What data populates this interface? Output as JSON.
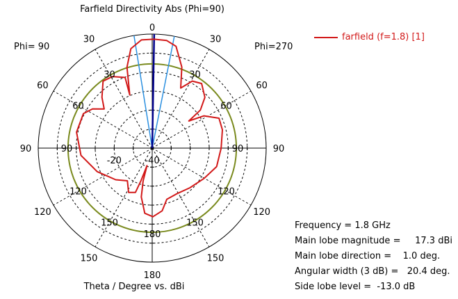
{
  "chart_data": {
    "type": "polar-line",
    "title": "Farfield Directivity Abs (Phi=90)",
    "xlabel": "Theta / Degree vs. dBi",
    "left_label": "Phi= 90",
    "right_label": "Phi=270",
    "radial_range": [
      -40,
      20
    ],
    "radial_ticks": [
      -40,
      -30,
      -20,
      -10,
      0,
      10,
      20
    ],
    "radial_tick_labels": [
      "-40",
      "-20"
    ],
    "angle_labels": [
      "0",
      "30",
      "60",
      "90",
      "120",
      "150",
      "180"
    ],
    "grid": true,
    "legend": {
      "position": "top-right",
      "entries": [
        "farfield (f=1.8) [1]"
      ]
    },
    "series": [
      {
        "name": "farfield (f=1.8) [1]",
        "color": "#d21919",
        "theta": [
          -173.5,
          -167.4,
          -164.5,
          -163.5,
          -161,
          -159.3,
          -151.9,
          -142.8,
          -130.9,
          -113.1,
          -95.8,
          -78.1,
          -63.4,
          -56.7,
          -50.8,
          -44.7,
          -36.3,
          -29.1,
          -21.0,
          -22.9,
          -17.3,
          -12.1,
          -5.7,
          1,
          7.7,
          13.2,
          20.1,
          25.4,
          30.9,
          37.4,
          46.1,
          51.7,
          53.5,
          58.1,
          65.9,
          75.4,
          90,
          106,
          120.4,
          136.4,
          151.1,
          164.1,
          171,
          179.4
        ],
        "dbi": [
          -5.5,
          -13.7,
          -22,
          -30.4,
          -22,
          -15.1,
          -13.6,
          -18.4,
          -14.6,
          -8.5,
          -2.3,
          0.7,
          0.5,
          -2.4,
          -7.4,
          -2.4,
          3.7,
          3.1,
          -0.2,
          -9.6,
          4.6,
          13.5,
          17.2,
          17.3,
          17.1,
          15.0,
          5.4,
          -5.0,
          1.1,
          2.8,
          -1.5,
          -7.7,
          -16,
          -7.9,
          -1.5,
          -1.8,
          -3.7,
          -4.7,
          -8.4,
          -11.2,
          -12.7,
          -12,
          -6.6,
          -3.9
        ]
      }
    ],
    "main_lobe_direction": 1.0,
    "beamwidth_3db": 20.4,
    "side_lobe_reference_dbi": 4.3,
    "colors": {
      "main_lobe": "#00008b",
      "beamwidth": "#2a8fe0",
      "side_lobe_circle": "#7a8a1e",
      "grid": "#000000"
    }
  },
  "info": {
    "frequency": "Frequency = 1.8 GHz",
    "magnitude": "Main lobe magnitude =     17.3 dBi",
    "direction": "Main lobe direction =    1.0 deg.",
    "width": "Angular width (3 dB) =   20.4 deg.",
    "sidelobe": "Side lobe level =  -13.0 dB"
  }
}
